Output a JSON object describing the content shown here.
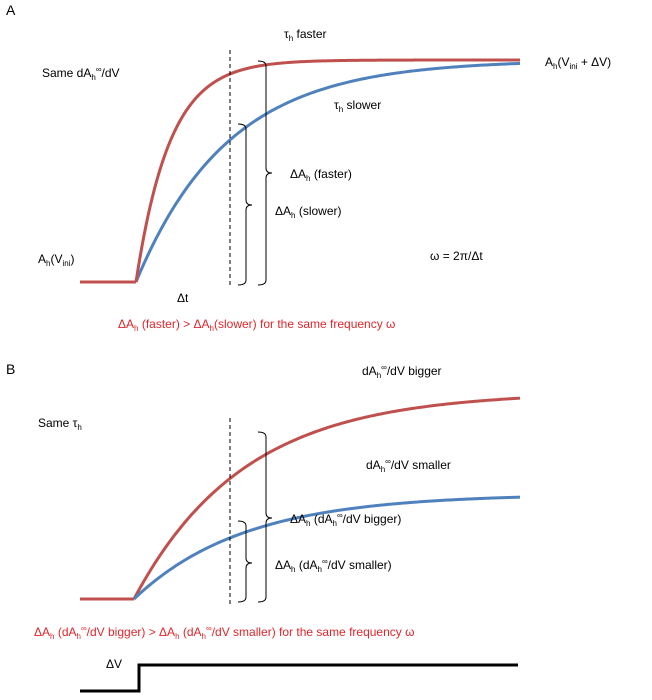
{
  "colors": {
    "red_curve": "#c0504d",
    "blue_curve": "#4f81bd",
    "caption": "#e0262b",
    "black": "#000000"
  },
  "panel_a": {
    "panel_label": "A",
    "tau_faster": {
      "base": "τ",
      "sub": "h",
      "rest": " faster"
    },
    "same_slope": {
      "pre": "Same dA",
      "sub": "h",
      "sup": "∞",
      "post": "/dV"
    },
    "final_value": {
      "pre": "A",
      "sub1": "h",
      "mid": "(V",
      "sub2": "ini",
      "post": " + ΔV)"
    },
    "tau_slower": {
      "base": "τ",
      "sub": "h",
      "rest": " slower"
    },
    "delta_faster": {
      "pre": "ΔA",
      "sub": "h",
      "post": " (faster)"
    },
    "delta_slower": {
      "pre": "ΔA",
      "sub": "h",
      "post": " (slower)"
    },
    "initial_value": {
      "pre": "A",
      "sub1": "h",
      "mid": "(V",
      "sub2": "ini",
      "post": ")"
    },
    "omega": "ω = 2π/Δt",
    "delta_t": "Δt",
    "caption": {
      "p1": "ΔA",
      "s1": "h",
      "p2": " (faster) > ΔA",
      "s2": "h",
      "p3": "(slower) for the same frequency ω"
    }
  },
  "panel_b": {
    "panel_label": "B",
    "slope_bigger": {
      "pre": "dA",
      "sub": "h",
      "sup": "∞",
      "post": "/dV bigger"
    },
    "same_tau": {
      "pre": "Same τ",
      "sub": "h"
    },
    "slope_smaller": {
      "pre": "dA",
      "sub": "h",
      "sup": "∞",
      "post": "/dV smaller"
    },
    "delta_bigger": {
      "p1": "ΔA",
      "s1": "h",
      "p2": " (dA",
      "s2": "h",
      "sup": "∞",
      "p3": "/dV bigger)"
    },
    "delta_smaller": {
      "p1": "ΔA",
      "s1": "h",
      "p2": " (dA",
      "s2": "h",
      "sup": "∞",
      "p3": "/dV smaller)"
    },
    "caption": {
      "p1": "ΔA",
      "s1": "h",
      "p2": " (dA",
      "s2": "h",
      "sup1": "∞",
      "p3": "/dV bigger) > ΔA",
      "s3": "h",
      "p4": " (dA",
      "s4": "h",
      "sup2": "∞",
      "p5": "/dV smaller) for the same frequency ω"
    }
  },
  "step": {
    "label": "ΔV"
  }
}
